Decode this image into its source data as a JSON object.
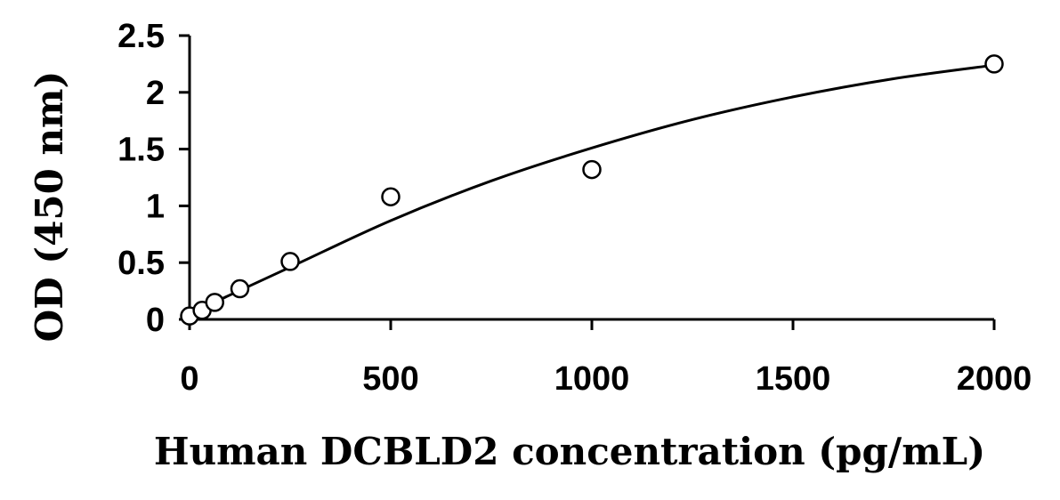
{
  "chart_data": {
    "type": "scatter",
    "title": "",
    "xlabel": "Human DCBLD2 concentration (pg/mL)",
    "ylabel": "OD (450 nm)",
    "xlim": [
      0,
      2000
    ],
    "ylim": [
      0,
      2.5
    ],
    "x_ticks": [
      0,
      500,
      1000,
      1500,
      2000
    ],
    "x_tick_labels": [
      "0",
      "500",
      "1000",
      "1500",
      "2000"
    ],
    "y_ticks": [
      0,
      0.5,
      1,
      1.5,
      2,
      2.5
    ],
    "y_tick_labels": [
      "0",
      "0.5",
      "1",
      "1.5",
      "2",
      "2.5"
    ],
    "grid": false,
    "legend": "none",
    "series": [
      {
        "marker": "open-circle",
        "points": [
          {
            "x": 0,
            "y": 0.03
          },
          {
            "x": 31.25,
            "y": 0.08
          },
          {
            "x": 62.5,
            "y": 0.15
          },
          {
            "x": 125,
            "y": 0.27
          },
          {
            "x": 250,
            "y": 0.51
          },
          {
            "x": 500,
            "y": 1.08
          },
          {
            "x": 1000,
            "y": 1.32
          },
          {
            "x": 2000,
            "y": 2.25
          }
        ]
      }
    ],
    "fit_curve": {
      "type": "line",
      "x": [
        0,
        250,
        500,
        750,
        1000,
        1250,
        1500,
        1750,
        2000
      ],
      "y": [
        0.05,
        0.46,
        0.87,
        1.22,
        1.51,
        1.76,
        1.96,
        2.12,
        2.24
      ]
    },
    "colors": {
      "marker_stroke": "#000000",
      "marker_fill": "#ffffff",
      "line": "#000000",
      "axis": "#000000"
    }
  }
}
